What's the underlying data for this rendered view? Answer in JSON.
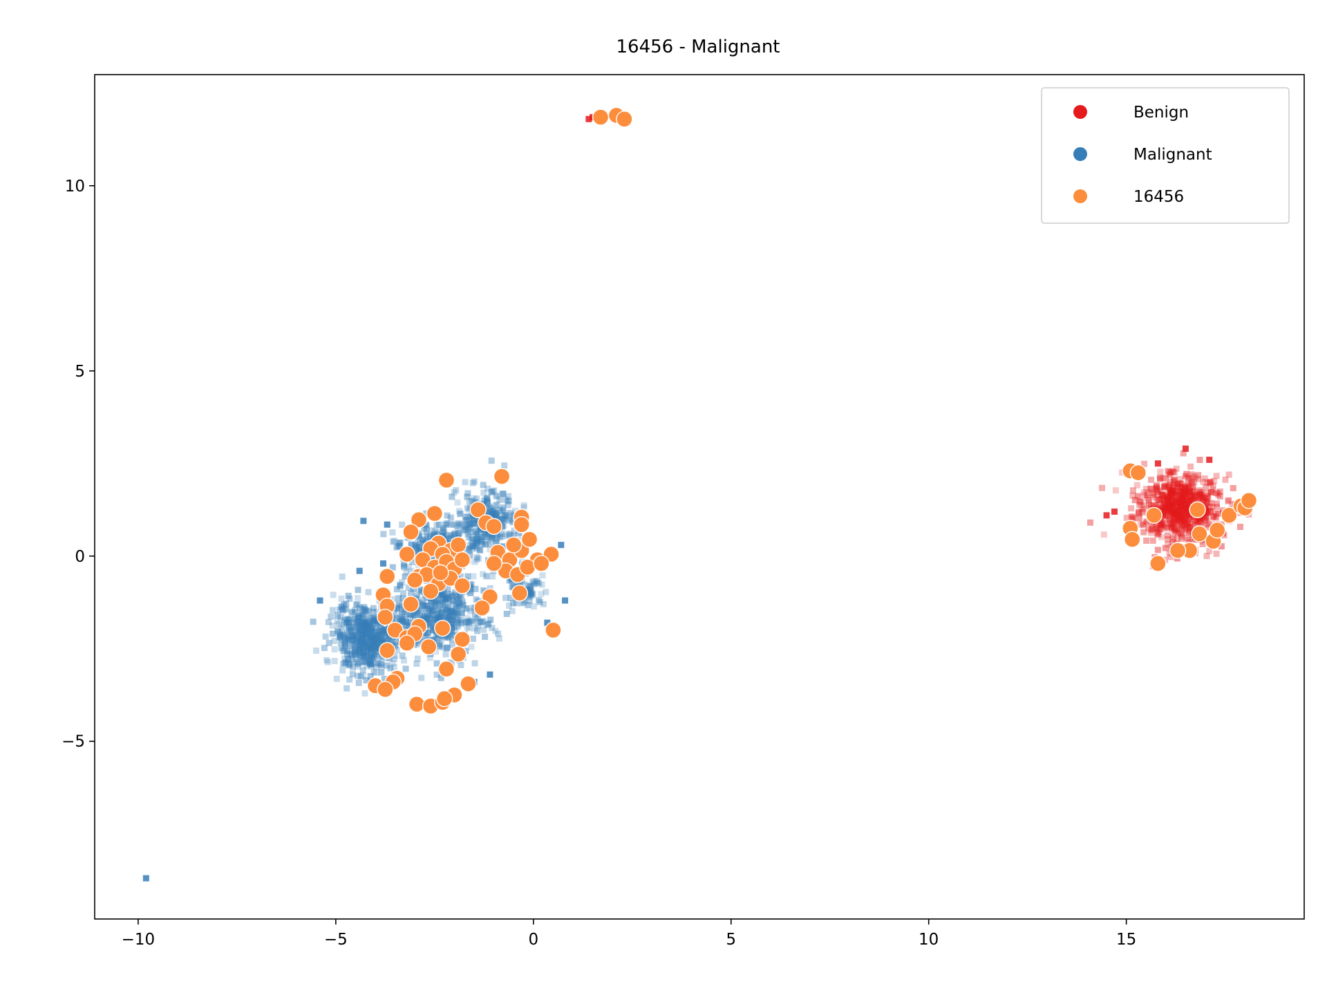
{
  "chart_data": {
    "type": "scatter",
    "title": "16456 - Malignant",
    "xlabel": "",
    "ylabel": "",
    "xlim": [
      -11.1,
      19.5
    ],
    "ylim": [
      -9.8,
      13.0
    ],
    "xticks": [
      -10,
      -5,
      0,
      5,
      10,
      15
    ],
    "yticks": [
      -5,
      0,
      5,
      10
    ],
    "grid": false,
    "legend_position": "upper right",
    "series": [
      {
        "name": "Benign",
        "color": "#e41a1c",
        "marker": "square",
        "regions": [
          {
            "center": [
              16.3,
              1.3
            ],
            "spread": [
              1.0,
              0.85
            ],
            "count": 650
          }
        ],
        "points": [
          [
            1.4,
            11.8
          ],
          [
            1.5,
            11.85
          ],
          [
            14.5,
            1.1
          ],
          [
            14.7,
            1.2
          ],
          [
            17.9,
            1.4
          ],
          [
            16.5,
            2.9
          ],
          [
            15.8,
            2.5
          ],
          [
            17.1,
            2.6
          ]
        ]
      },
      {
        "name": "Malignant",
        "color": "#377eb8",
        "marker": "square",
        "regions": [
          {
            "center": [
              -4.2,
              -2.2
            ],
            "spread": [
              0.75,
              0.85
            ],
            "count": 520
          },
          {
            "center": [
              -2.4,
              -1.6
            ],
            "spread": [
              1.0,
              1.1
            ],
            "count": 520
          },
          {
            "center": [
              -1.2,
              0.9
            ],
            "spread": [
              0.7,
              0.85
            ],
            "count": 300
          },
          {
            "center": [
              -2.5,
              0.3
            ],
            "spread": [
              0.8,
              0.6
            ],
            "count": 220
          },
          {
            "center": [
              -0.2,
              -0.9
            ],
            "spread": [
              0.45,
              0.45
            ],
            "count": 80
          }
        ],
        "points": [
          [
            -9.8,
            -8.7
          ],
          [
            -4.3,
            0.95
          ],
          [
            -3.7,
            0.85
          ],
          [
            -4.4,
            -0.4
          ],
          [
            -5.4,
            -1.2
          ],
          [
            0.7,
            0.3
          ],
          [
            0.8,
            -1.2
          ],
          [
            0.35,
            -1.8
          ],
          [
            -0.9,
            2.2
          ],
          [
            -1.1,
            -3.2
          ],
          [
            -1.5,
            -3.4
          ],
          [
            -3.8,
            -0.2
          ]
        ]
      },
      {
        "name": "16456",
        "color": "#fc8d3c",
        "marker": "circle",
        "points": [
          [
            1.7,
            11.85
          ],
          [
            2.1,
            11.9
          ],
          [
            2.3,
            11.8
          ],
          [
            -2.2,
            2.05
          ],
          [
            -0.8,
            2.15
          ],
          [
            -2.5,
            1.15
          ],
          [
            -2.9,
            0.98
          ],
          [
            -1.4,
            1.25
          ],
          [
            -1.2,
            0.9
          ],
          [
            -1.0,
            0.8
          ],
          [
            -0.3,
            1.05
          ],
          [
            -0.3,
            0.85
          ],
          [
            -3.1,
            0.65
          ],
          [
            -2.4,
            0.35
          ],
          [
            -2.1,
            0.15
          ],
          [
            -1.9,
            0.3
          ],
          [
            -2.6,
            0.2
          ],
          [
            -2.3,
            0.05
          ],
          [
            -3.2,
            0.05
          ],
          [
            -2.8,
            -0.1
          ],
          [
            -2.5,
            -0.3
          ],
          [
            -2.2,
            -0.15
          ],
          [
            -2.0,
            -0.35
          ],
          [
            -1.8,
            -0.1
          ],
          [
            -2.9,
            -0.55
          ],
          [
            -2.7,
            -0.5
          ],
          [
            -2.4,
            -0.75
          ],
          [
            -2.1,
            -0.6
          ],
          [
            -1.8,
            -0.8
          ],
          [
            -2.6,
            -0.95
          ],
          [
            -3.0,
            -0.65
          ],
          [
            -2.35,
            -0.45
          ],
          [
            -0.9,
            0.1
          ],
          [
            -0.6,
            -0.1
          ],
          [
            -0.3,
            0.15
          ],
          [
            -0.1,
            0.45
          ],
          [
            0.1,
            -0.1
          ],
          [
            -0.7,
            -0.4
          ],
          [
            -0.4,
            -0.5
          ],
          [
            -0.15,
            -0.3
          ],
          [
            -1.0,
            -0.2
          ],
          [
            -0.5,
            0.3
          ],
          [
            0.45,
            0.05
          ],
          [
            0.2,
            -0.2
          ],
          [
            -0.35,
            -1.0
          ],
          [
            -1.1,
            -1.1
          ],
          [
            -1.3,
            -1.4
          ],
          [
            -3.7,
            -0.55
          ],
          [
            -3.8,
            -1.05
          ],
          [
            -3.7,
            -1.35
          ],
          [
            -3.75,
            -1.65
          ],
          [
            -3.5,
            -2.0
          ],
          [
            -3.1,
            -1.3
          ],
          [
            -2.9,
            -1.9
          ],
          [
            -3.2,
            -2.2
          ],
          [
            -3.0,
            -2.1
          ],
          [
            -2.65,
            -2.45
          ],
          [
            -3.2,
            -2.35
          ],
          [
            -2.3,
            -1.95
          ],
          [
            -1.8,
            -2.25
          ],
          [
            -3.7,
            -2.55
          ],
          [
            -1.9,
            -2.65
          ],
          [
            -2.2,
            -3.05
          ],
          [
            -1.65,
            -3.45
          ],
          [
            -3.45,
            -3.3
          ],
          [
            -3.55,
            -3.4
          ],
          [
            -4.0,
            -3.5
          ],
          [
            -3.75,
            -3.6
          ],
          [
            -2.95,
            -4.0
          ],
          [
            -2.6,
            -4.05
          ],
          [
            -2.3,
            -3.95
          ],
          [
            -2.0,
            -3.75
          ],
          [
            -2.25,
            -3.85
          ],
          [
            0.5,
            -2.0
          ],
          [
            15.1,
            2.3
          ],
          [
            15.3,
            2.25
          ],
          [
            15.7,
            1.1
          ],
          [
            15.1,
            0.75
          ],
          [
            15.15,
            0.45
          ],
          [
            15.8,
            -0.2
          ],
          [
            16.8,
            1.25
          ],
          [
            16.85,
            0.6
          ],
          [
            16.6,
            0.15
          ],
          [
            16.3,
            0.15
          ],
          [
            17.2,
            0.4
          ],
          [
            17.3,
            0.7
          ],
          [
            17.6,
            1.1
          ],
          [
            17.9,
            1.35
          ],
          [
            18.0,
            1.3
          ],
          [
            18.1,
            1.5
          ]
        ]
      }
    ]
  }
}
